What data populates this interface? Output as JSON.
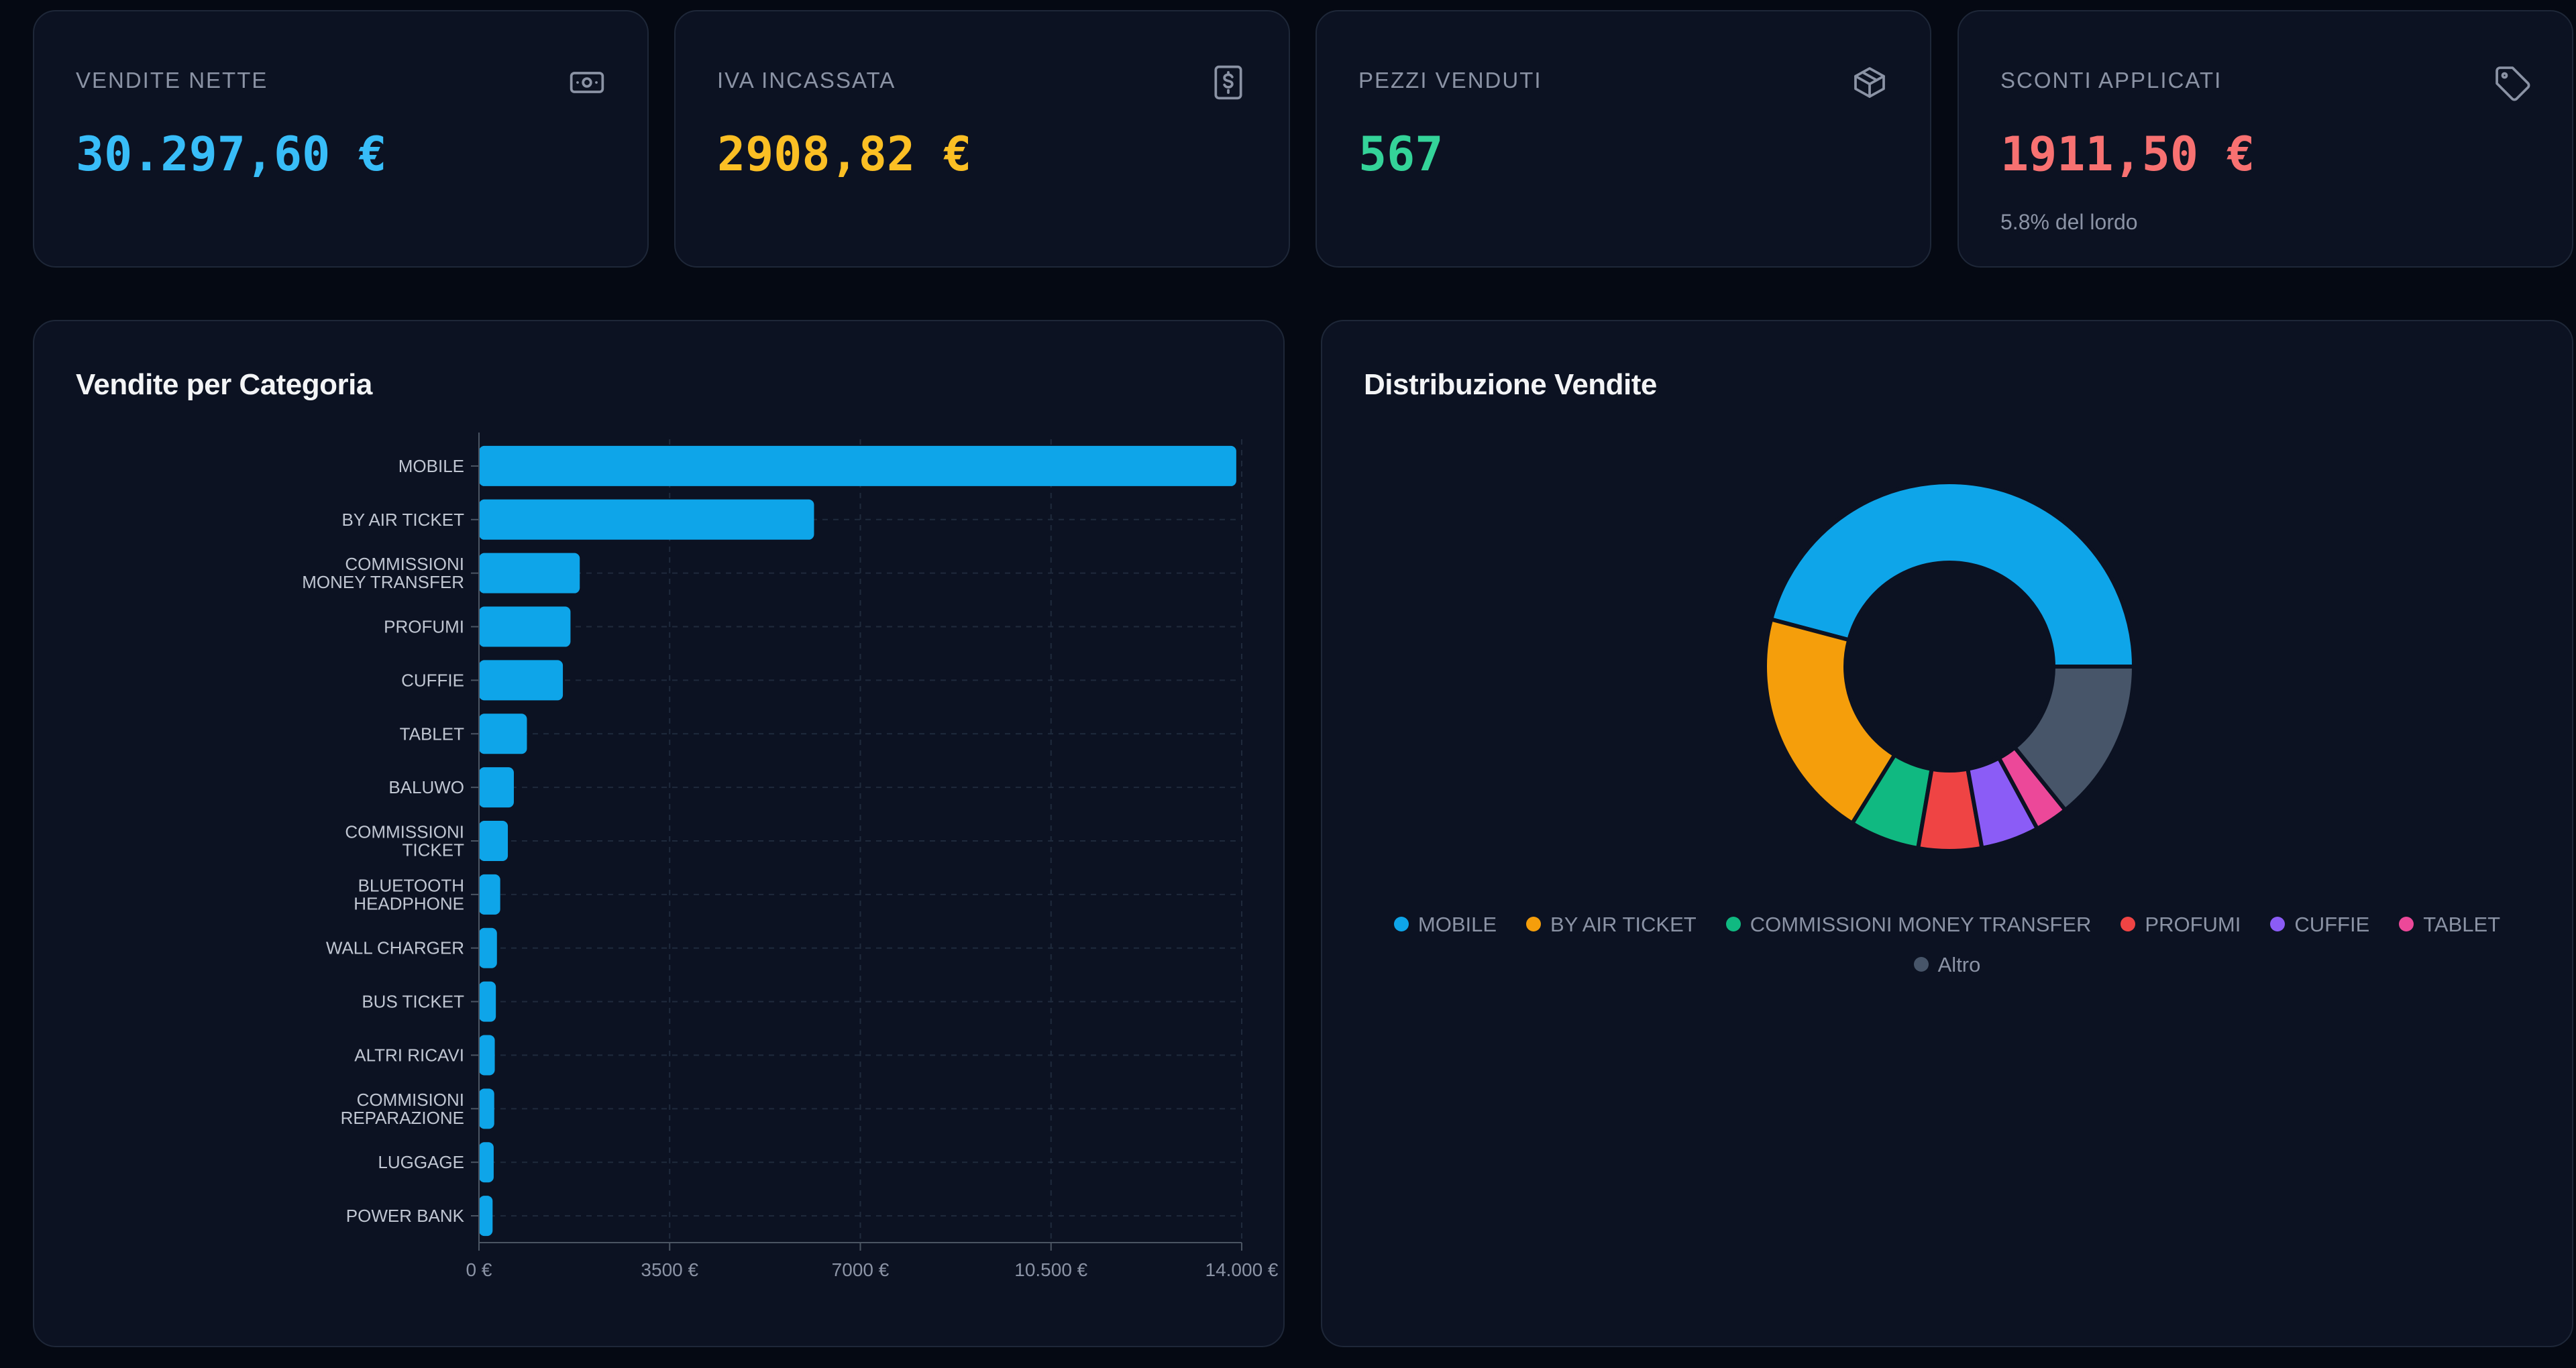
{
  "kpis": [
    {
      "label": "VENDITE NETTE",
      "value": "30.297,60 €",
      "color": "#38bdf8",
      "icon": "banknote-icon"
    },
    {
      "label": "IVA INCASSATA",
      "value": "2908,82 €",
      "color": "#fbbf24",
      "icon": "dollar-receipt-icon"
    },
    {
      "label": "PEZZI VENDUTI",
      "value": "567",
      "color": "#34d399",
      "icon": "package-icon"
    },
    {
      "label": "SCONTI APPLICATI",
      "value": "1911,50 €",
      "color": "#f87171",
      "icon": "tag-icon",
      "sub": "5.8% del lordo"
    }
  ],
  "bar_panel": {
    "title": "Vendite per Categoria"
  },
  "donut_panel": {
    "title": "Distribuzione Vendite"
  },
  "chart_data": [
    {
      "type": "bar",
      "orientation": "horizontal",
      "title": "Vendite per Categoria",
      "color": "#0ea5e9",
      "categories": [
        [
          "MOBILE"
        ],
        [
          "BY AIR TICKET"
        ],
        [
          "COMMISSIONI",
          "MONEY TRANSFER"
        ],
        [
          "PROFUMI"
        ],
        [
          "CUFFIE"
        ],
        [
          "TABLET"
        ],
        [
          "BALUWO"
        ],
        [
          "COMMISSIONI",
          "TICKET"
        ],
        [
          "BLUETOOTH",
          "HEADPHONE"
        ],
        [
          "WALL CHARGER"
        ],
        [
          "BUS TICKET"
        ],
        [
          "ALTRI RICAVI"
        ],
        [
          "COMMISIONI",
          "REPARAZIONE"
        ],
        [
          "LUGGAGE"
        ],
        [
          "POWER BANK"
        ]
      ],
      "values": [
        13900,
        6150,
        1850,
        1680,
        1540,
        880,
        640,
        530,
        390,
        330,
        310,
        290,
        280,
        270,
        250
      ],
      "xlim": [
        0,
        14000
      ],
      "xticks": [
        0,
        3500,
        7000,
        10500,
        14000
      ],
      "xtick_labels": [
        "0 €",
        "3500 €",
        "7000 €",
        "10.500 €",
        "14.000 €"
      ],
      "grid": true
    },
    {
      "type": "pie",
      "variant": "donut",
      "title": "Distribuzione Vendite",
      "labels": [
        "MOBILE",
        "BY AIR TICKET",
        "COMMISSIONI MONEY TRANSFER",
        "PROFUMI",
        "CUFFIE",
        "TABLET",
        "Altro"
      ],
      "values": [
        13900,
        6150,
        1850,
        1680,
        1540,
        880,
        4300
      ],
      "colors": [
        "#0ea5e9",
        "#f59e0b",
        "#10b981",
        "#ef4444",
        "#8b5cf6",
        "#ec4899",
        "#475569"
      ],
      "legend_position": "bottom"
    }
  ]
}
